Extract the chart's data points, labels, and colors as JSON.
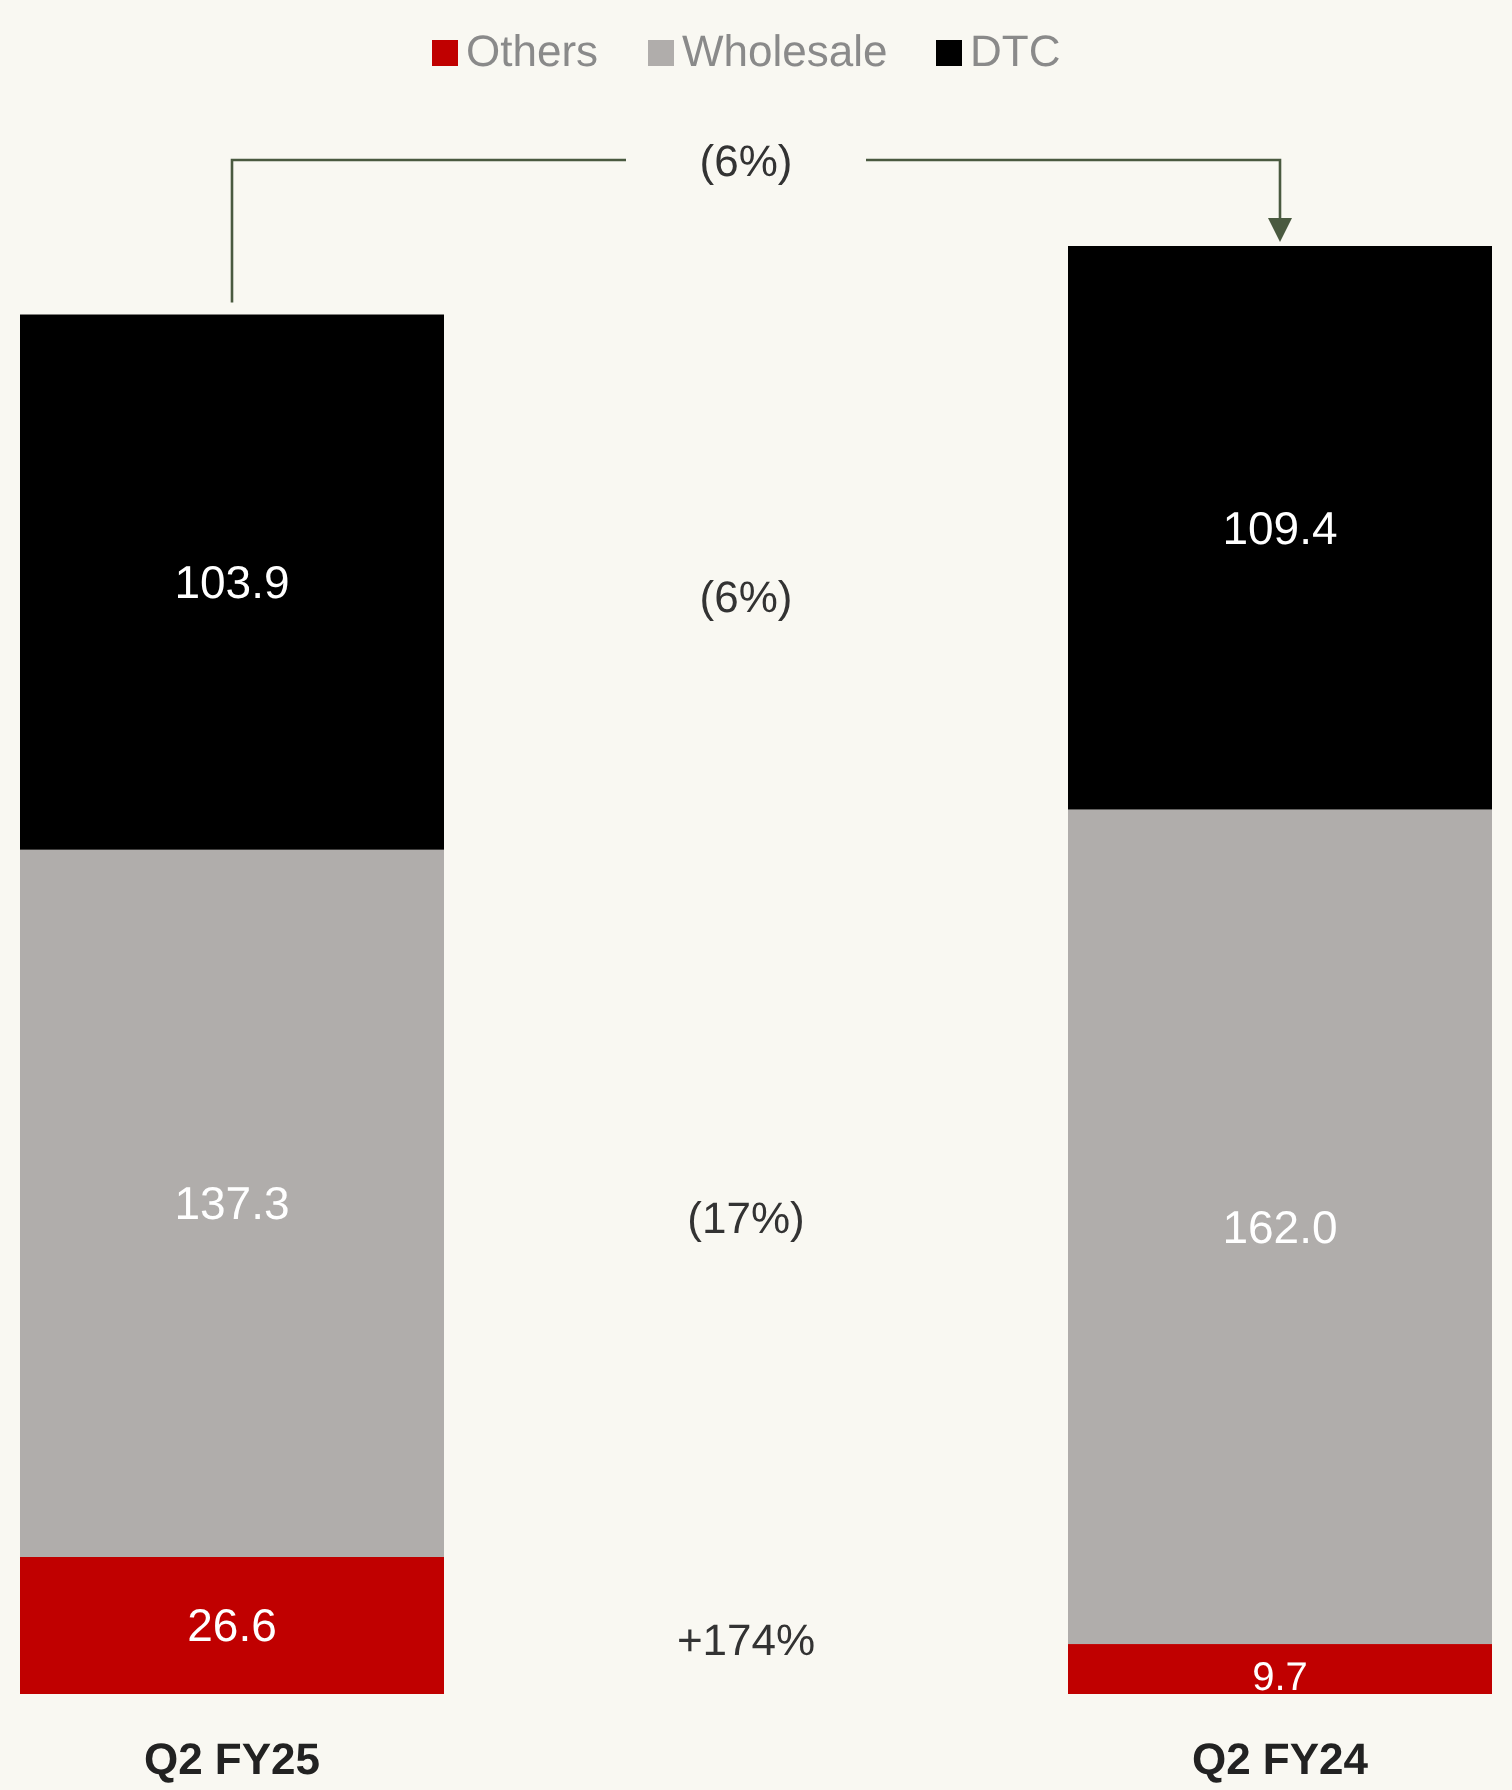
{
  "chart_data": {
    "type": "bar",
    "stacked": true,
    "categories": [
      "Q2 FY25",
      "Q2 FY24"
    ],
    "series": [
      {
        "name": "Others",
        "color": "#c00000",
        "values": [
          26.6,
          9.7
        ],
        "value_labels": [
          "26.6",
          "9.7"
        ]
      },
      {
        "name": "Wholesale",
        "color": "#b0adab",
        "values": [
          137.3,
          162.0
        ],
        "value_labels": [
          "137.3",
          "162.0"
        ]
      },
      {
        "name": "DTC",
        "color": "#000000",
        "values": [
          103.9,
          109.4
        ],
        "value_labels": [
          "103.9",
          "109.4"
        ]
      }
    ],
    "legend": "top",
    "annotations": [
      "(6%)",
      "(6%)",
      "(17%)",
      "+174%"
    ]
  }
}
